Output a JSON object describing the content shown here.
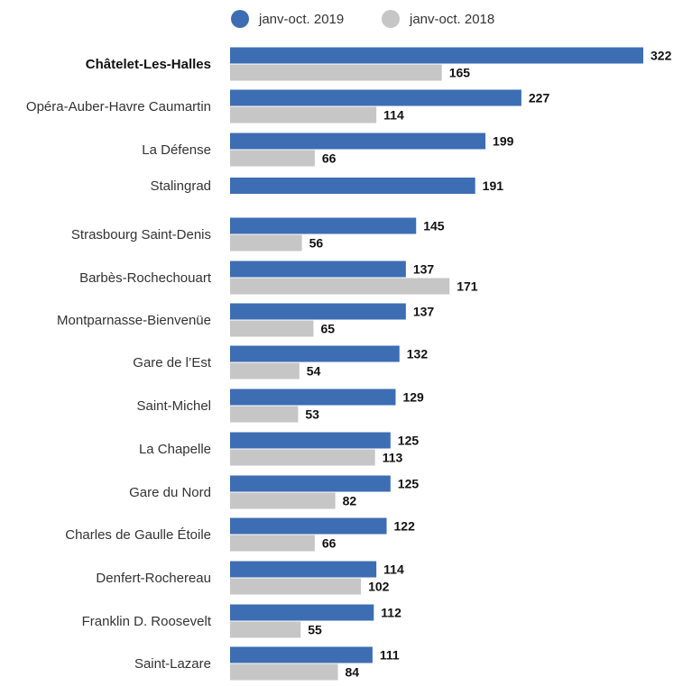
{
  "chart_data": {
    "type": "bar",
    "orientation": "horizontal",
    "title": "",
    "xlabel": "",
    "ylabel": "",
    "grid": false,
    "legend_position": "top",
    "series": [
      {
        "name": "janv-oct. 2019",
        "color": "#3d6db3",
        "values": [
          322,
          227,
          199,
          191,
          145,
          137,
          137,
          132,
          129,
          125,
          125,
          122,
          114,
          112,
          111
        ]
      },
      {
        "name": "janv-oct. 2018",
        "color": "#c6c6c6",
        "values": [
          165,
          114,
          66,
          null,
          56,
          171,
          65,
          54,
          53,
          113,
          82,
          66,
          102,
          55,
          84
        ]
      }
    ],
    "categories": [
      "Châtelet-Les-Halles",
      "Opéra-Auber-Havre Caumartin",
      "La Défense",
      "Stalingrad",
      "Strasbourg Saint-Denis",
      "Barbès-Rochechouart",
      "Montparnasse-Bienvenüe",
      "Gare de l’Est",
      "Saint-Michel",
      "La Chapelle",
      "Gare du Nord",
      "Charles de Gaulle Étoile",
      "Denfert-Rochereau",
      "Franklin D. Roosevelt",
      "Saint-Lazare"
    ],
    "highlighted_category": "Châtelet-Les-Halles",
    "xlim": [
      0,
      322
    ]
  }
}
